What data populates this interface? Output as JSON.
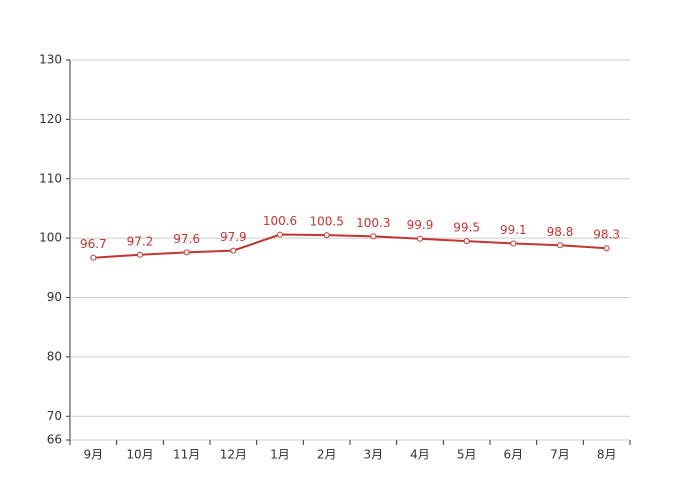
{
  "chart_data": {
    "type": "line",
    "categories": [
      "9月",
      "10月",
      "11月",
      "12月",
      "1月",
      "2月",
      "3月",
      "4月",
      "5月",
      "6月",
      "7月",
      "8月"
    ],
    "values": [
      96.7,
      97.2,
      97.6,
      97.9,
      100.6,
      100.5,
      100.3,
      99.9,
      99.5,
      99.1,
      98.8,
      98.3
    ],
    "color": "#c23531",
    "ylim": [
      66,
      130
    ],
    "yticks": [
      66,
      70,
      80,
      90,
      100,
      110,
      120,
      130
    ],
    "grid": true,
    "data_labels": true
  }
}
